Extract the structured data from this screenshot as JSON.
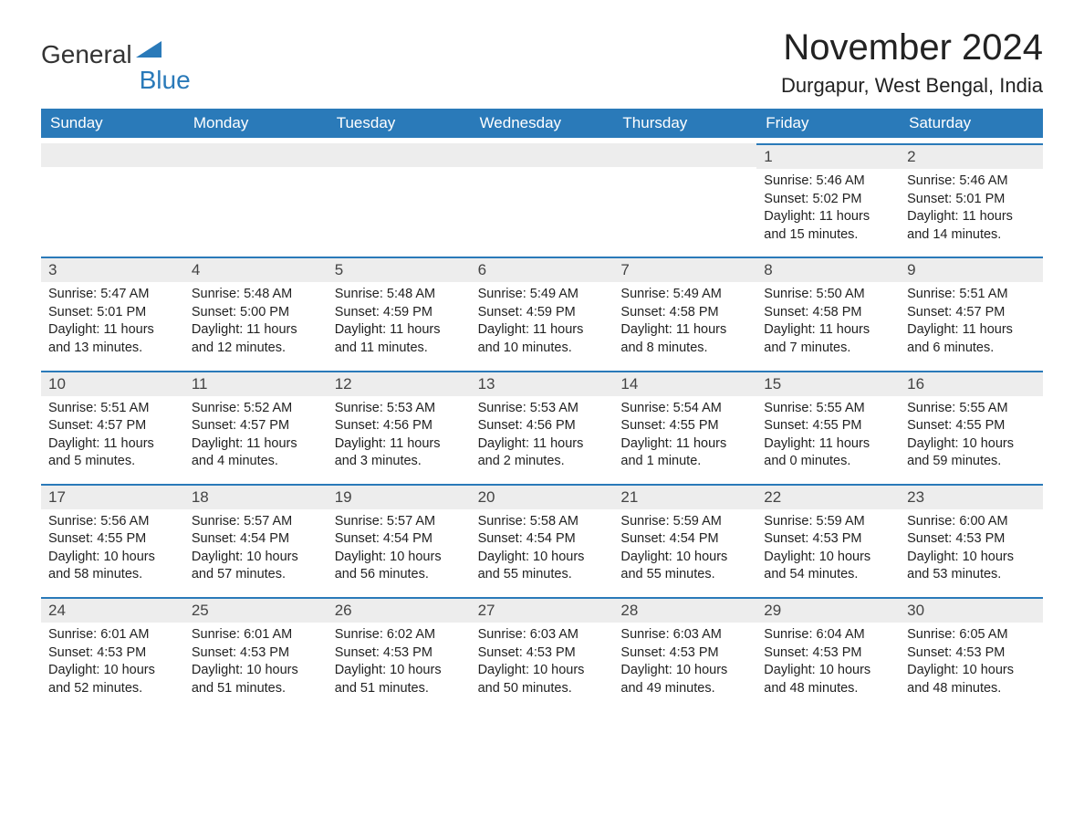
{
  "logo": {
    "text1": "General",
    "text2": "Blue"
  },
  "title": "November 2024",
  "location": "Durgapur, West Bengal, India",
  "header_bg": "#2a7ab9",
  "header_fg": "#ffffff",
  "daynum_bg": "#ededed",
  "daynum_border": "#2a7ab9",
  "text_color": "#222222",
  "day_names": [
    "Sunday",
    "Monday",
    "Tuesday",
    "Wednesday",
    "Thursday",
    "Friday",
    "Saturday"
  ],
  "weeks": [
    [
      null,
      null,
      null,
      null,
      null,
      {
        "num": "1",
        "sunrise": "5:46 AM",
        "sunset": "5:02 PM",
        "daylight": "11 hours and 15 minutes."
      },
      {
        "num": "2",
        "sunrise": "5:46 AM",
        "sunset": "5:01 PM",
        "daylight": "11 hours and 14 minutes."
      }
    ],
    [
      {
        "num": "3",
        "sunrise": "5:47 AM",
        "sunset": "5:01 PM",
        "daylight": "11 hours and 13 minutes."
      },
      {
        "num": "4",
        "sunrise": "5:48 AM",
        "sunset": "5:00 PM",
        "daylight": "11 hours and 12 minutes."
      },
      {
        "num": "5",
        "sunrise": "5:48 AM",
        "sunset": "4:59 PM",
        "daylight": "11 hours and 11 minutes."
      },
      {
        "num": "6",
        "sunrise": "5:49 AM",
        "sunset": "4:59 PM",
        "daylight": "11 hours and 10 minutes."
      },
      {
        "num": "7",
        "sunrise": "5:49 AM",
        "sunset": "4:58 PM",
        "daylight": "11 hours and 8 minutes."
      },
      {
        "num": "8",
        "sunrise": "5:50 AM",
        "sunset": "4:58 PM",
        "daylight": "11 hours and 7 minutes."
      },
      {
        "num": "9",
        "sunrise": "5:51 AM",
        "sunset": "4:57 PM",
        "daylight": "11 hours and 6 minutes."
      }
    ],
    [
      {
        "num": "10",
        "sunrise": "5:51 AM",
        "sunset": "4:57 PM",
        "daylight": "11 hours and 5 minutes."
      },
      {
        "num": "11",
        "sunrise": "5:52 AM",
        "sunset": "4:57 PM",
        "daylight": "11 hours and 4 minutes."
      },
      {
        "num": "12",
        "sunrise": "5:53 AM",
        "sunset": "4:56 PM",
        "daylight": "11 hours and 3 minutes."
      },
      {
        "num": "13",
        "sunrise": "5:53 AM",
        "sunset": "4:56 PM",
        "daylight": "11 hours and 2 minutes."
      },
      {
        "num": "14",
        "sunrise": "5:54 AM",
        "sunset": "4:55 PM",
        "daylight": "11 hours and 1 minute."
      },
      {
        "num": "15",
        "sunrise": "5:55 AM",
        "sunset": "4:55 PM",
        "daylight": "11 hours and 0 minutes."
      },
      {
        "num": "16",
        "sunrise": "5:55 AM",
        "sunset": "4:55 PM",
        "daylight": "10 hours and 59 minutes."
      }
    ],
    [
      {
        "num": "17",
        "sunrise": "5:56 AM",
        "sunset": "4:55 PM",
        "daylight": "10 hours and 58 minutes."
      },
      {
        "num": "18",
        "sunrise": "5:57 AM",
        "sunset": "4:54 PM",
        "daylight": "10 hours and 57 minutes."
      },
      {
        "num": "19",
        "sunrise": "5:57 AM",
        "sunset": "4:54 PM",
        "daylight": "10 hours and 56 minutes."
      },
      {
        "num": "20",
        "sunrise": "5:58 AM",
        "sunset": "4:54 PM",
        "daylight": "10 hours and 55 minutes."
      },
      {
        "num": "21",
        "sunrise": "5:59 AM",
        "sunset": "4:54 PM",
        "daylight": "10 hours and 55 minutes."
      },
      {
        "num": "22",
        "sunrise": "5:59 AM",
        "sunset": "4:53 PM",
        "daylight": "10 hours and 54 minutes."
      },
      {
        "num": "23",
        "sunrise": "6:00 AM",
        "sunset": "4:53 PM",
        "daylight": "10 hours and 53 minutes."
      }
    ],
    [
      {
        "num": "24",
        "sunrise": "6:01 AM",
        "sunset": "4:53 PM",
        "daylight": "10 hours and 52 minutes."
      },
      {
        "num": "25",
        "sunrise": "6:01 AM",
        "sunset": "4:53 PM",
        "daylight": "10 hours and 51 minutes."
      },
      {
        "num": "26",
        "sunrise": "6:02 AM",
        "sunset": "4:53 PM",
        "daylight": "10 hours and 51 minutes."
      },
      {
        "num": "27",
        "sunrise": "6:03 AM",
        "sunset": "4:53 PM",
        "daylight": "10 hours and 50 minutes."
      },
      {
        "num": "28",
        "sunrise": "6:03 AM",
        "sunset": "4:53 PM",
        "daylight": "10 hours and 49 minutes."
      },
      {
        "num": "29",
        "sunrise": "6:04 AM",
        "sunset": "4:53 PM",
        "daylight": "10 hours and 48 minutes."
      },
      {
        "num": "30",
        "sunrise": "6:05 AM",
        "sunset": "4:53 PM",
        "daylight": "10 hours and 48 minutes."
      }
    ]
  ],
  "labels": {
    "sunrise": "Sunrise: ",
    "sunset": "Sunset: ",
    "daylight": "Daylight: "
  }
}
